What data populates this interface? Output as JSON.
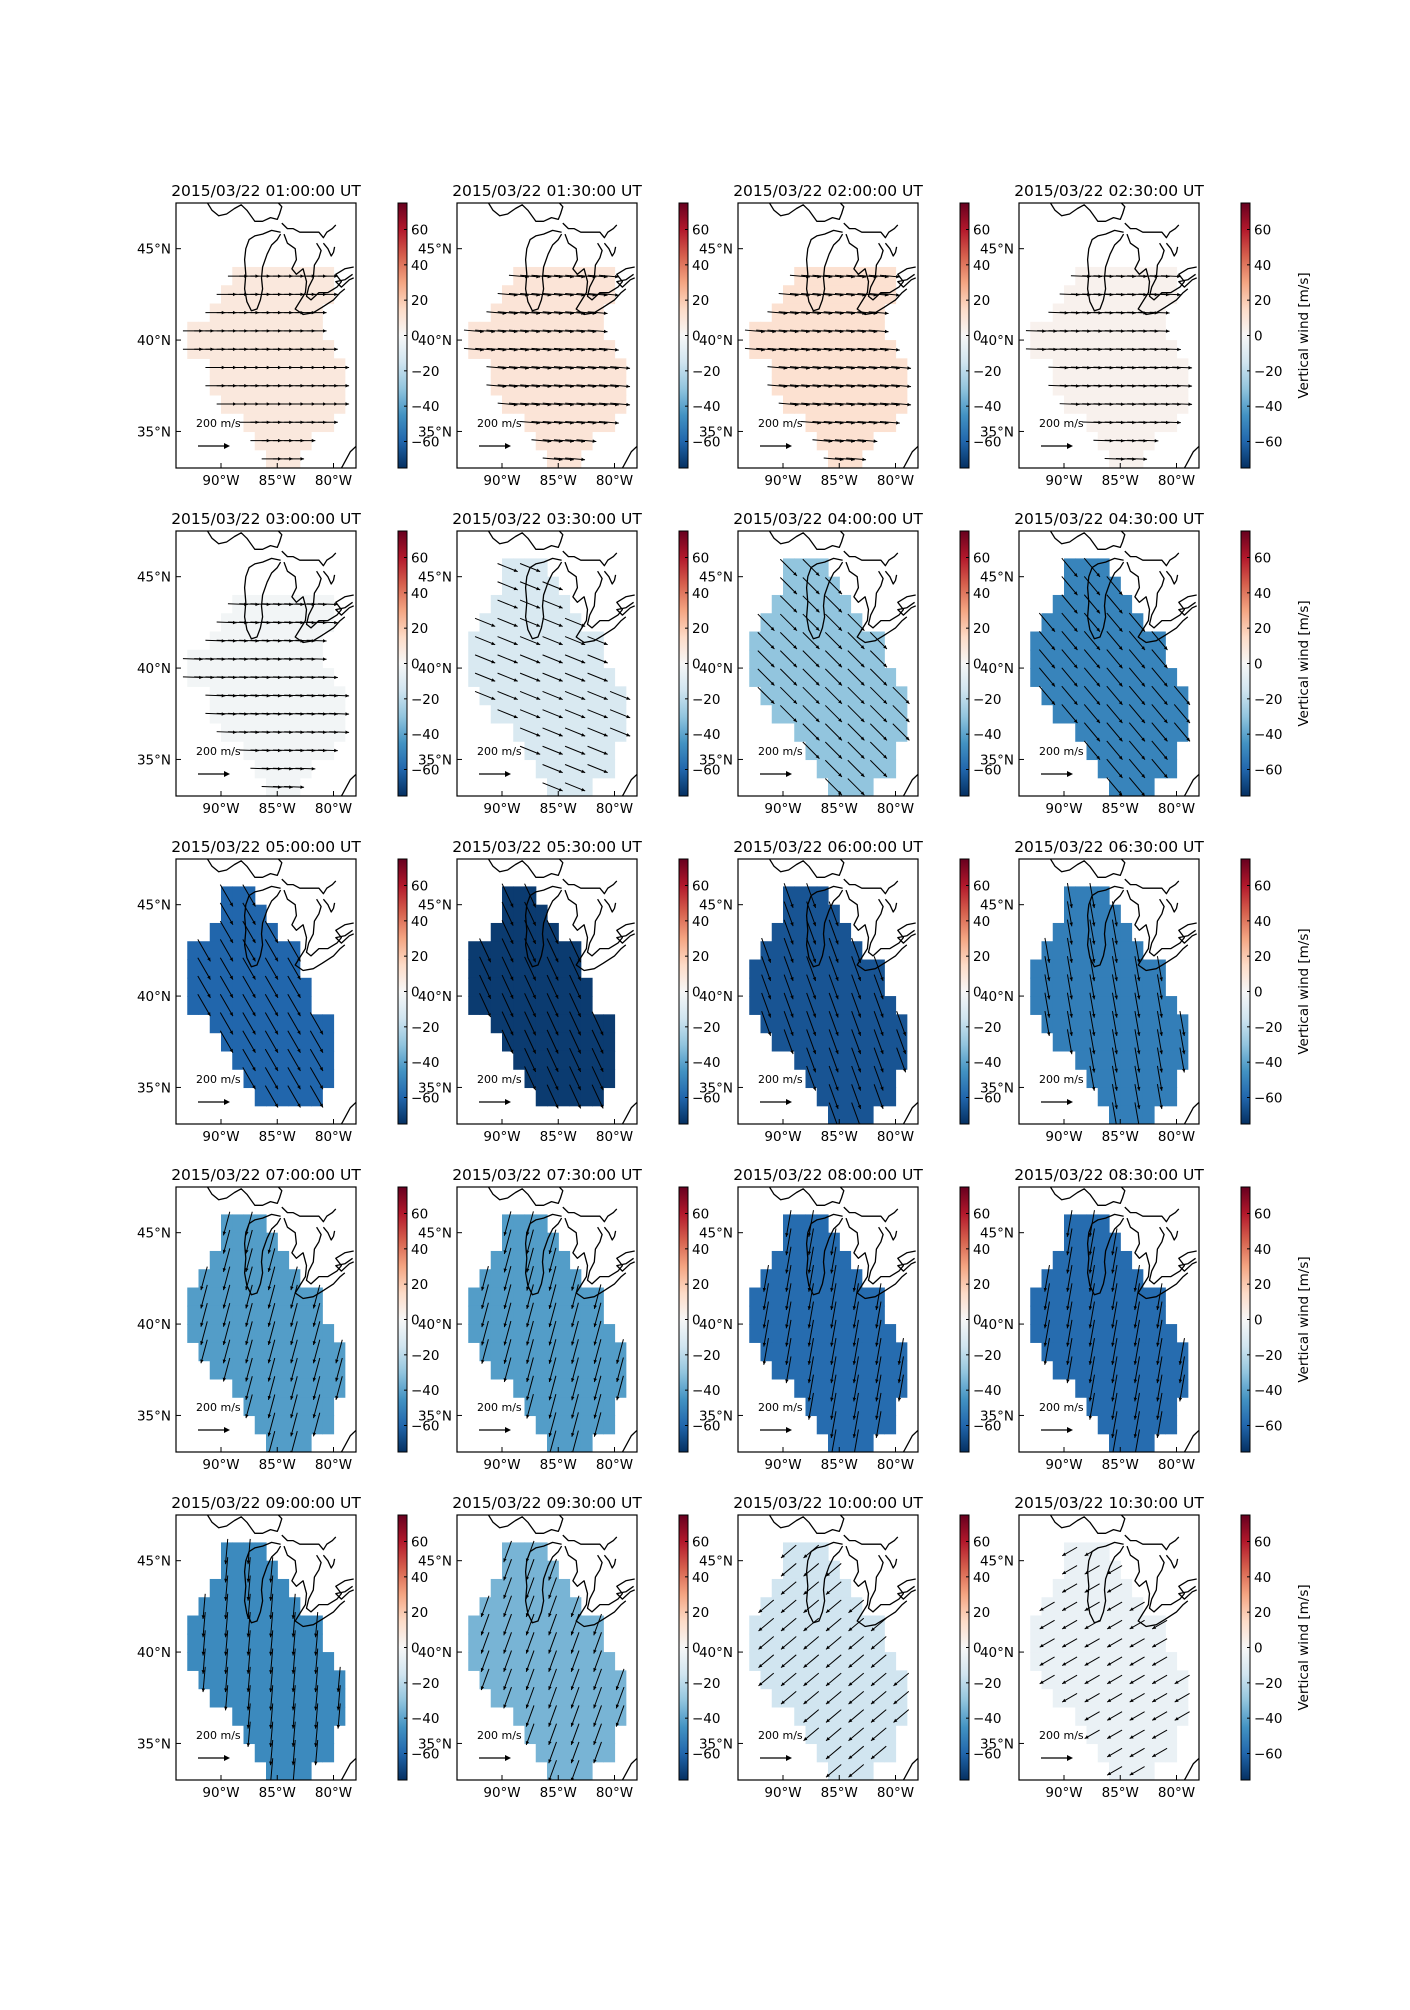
{
  "figure": {
    "colorbar_label": "Vertical wind [m/s]",
    "scale_arrow_label": "200 m/s",
    "colorbar_ticks": [
      "60",
      "40",
      "20",
      "0",
      "−20",
      "−40",
      "−60"
    ],
    "colorbar_tick_values": [
      60,
      40,
      20,
      0,
      -20,
      -40,
      -60
    ],
    "colorbar_range": [
      -75,
      75
    ],
    "lon_ticks": [
      "90°W",
      "85°W",
      "80°W"
    ],
    "lat_ticks": [
      "45°N",
      "40°N",
      "35°N"
    ],
    "lon_tick_values": [
      -90,
      -85,
      -80
    ],
    "lat_tick_values": [
      45,
      40,
      35
    ],
    "map_extent": {
      "lon": [
        -94,
        -78
      ],
      "lat": [
        33,
        47.5
      ]
    },
    "colormap": "RdBu_r"
  },
  "panels": [
    {
      "title": "2015/03/22 01:00:00 UT",
      "vertical_wind": 8,
      "wind_dir_deg": 90,
      "wind_len": 0.55,
      "shape": "east"
    },
    {
      "title": "2015/03/22 01:30:00 UT",
      "vertical_wind": 10,
      "wind_dir_deg": 95,
      "wind_len": 0.55,
      "shape": "east"
    },
    {
      "title": "2015/03/22 02:00:00 UT",
      "vertical_wind": 12,
      "wind_dir_deg": 95,
      "wind_len": 0.55,
      "shape": "east"
    },
    {
      "title": "2015/03/22 02:30:00 UT",
      "vertical_wind": 3,
      "wind_dir_deg": 92,
      "wind_len": 0.55,
      "shape": "east"
    },
    {
      "title": "2015/03/22 03:00:00 UT",
      "vertical_wind": -2,
      "wind_dir_deg": 92,
      "wind_len": 0.55,
      "shape": "east"
    },
    {
      "title": "2015/03/22 03:30:00 UT",
      "vertical_wind": -12,
      "wind_dir_deg": 112,
      "wind_len": 0.65,
      "shape": "full"
    },
    {
      "title": "2015/03/22 04:00:00 UT",
      "vertical_wind": -30,
      "wind_dir_deg": 135,
      "wind_len": 0.75,
      "shape": "full"
    },
    {
      "title": "2015/03/22 04:30:00 UT",
      "vertical_wind": -50,
      "wind_dir_deg": 140,
      "wind_len": 0.8,
      "shape": "full"
    },
    {
      "title": "2015/03/22 05:00:00 UT",
      "vertical_wind": -60,
      "wind_dir_deg": 150,
      "wind_len": 0.85,
      "shape": "west"
    },
    {
      "title": "2015/03/22 05:30:00 UT",
      "vertical_wind": -72,
      "wind_dir_deg": 155,
      "wind_len": 0.9,
      "shape": "west"
    },
    {
      "title": "2015/03/22 06:00:00 UT",
      "vertical_wind": -65,
      "wind_dir_deg": 160,
      "wind_len": 0.9,
      "shape": "full"
    },
    {
      "title": "2015/03/22 06:30:00 UT",
      "vertical_wind": -52,
      "wind_dir_deg": 170,
      "wind_len": 0.85,
      "shape": "full"
    },
    {
      "title": "2015/03/22 07:00:00 UT",
      "vertical_wind": -42,
      "wind_dir_deg": 195,
      "wind_len": 0.8,
      "shape": "full"
    },
    {
      "title": "2015/03/22 07:30:00 UT",
      "vertical_wind": -42,
      "wind_dir_deg": 195,
      "wind_len": 0.85,
      "shape": "full"
    },
    {
      "title": "2015/03/22 08:00:00 UT",
      "vertical_wind": -58,
      "wind_dir_deg": 190,
      "wind_len": 0.95,
      "shape": "full"
    },
    {
      "title": "2015/03/22 08:30:00 UT",
      "vertical_wind": -58,
      "wind_dir_deg": 190,
      "wind_len": 0.95,
      "shape": "full"
    },
    {
      "title": "2015/03/22 09:00:00 UT",
      "vertical_wind": -48,
      "wind_dir_deg": 185,
      "wind_len": 0.85,
      "shape": "full"
    },
    {
      "title": "2015/03/22 09:30:00 UT",
      "vertical_wind": -35,
      "wind_dir_deg": 200,
      "wind_len": 0.7,
      "shape": "full"
    },
    {
      "title": "2015/03/22 10:00:00 UT",
      "vertical_wind": -15,
      "wind_dir_deg": 230,
      "wind_len": 0.55,
      "shape": "full"
    },
    {
      "title": "2015/03/22 10:30:00 UT",
      "vertical_wind": -5,
      "wind_dir_deg": 240,
      "wind_len": 0.4,
      "shape": "full"
    }
  ]
}
